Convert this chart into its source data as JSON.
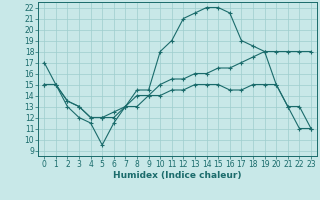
{
  "xlabel": "Humidex (Indice chaleur)",
  "bg_color": "#c8e8e8",
  "line_color": "#1a6b6b",
  "grid_color": "#9ecece",
  "xlim": [
    -0.5,
    23.5
  ],
  "ylim": [
    8.5,
    22.5
  ],
  "yticks": [
    9,
    10,
    11,
    12,
    13,
    14,
    15,
    16,
    17,
    18,
    19,
    20,
    21,
    22
  ],
  "xticks": [
    0,
    1,
    2,
    3,
    4,
    5,
    6,
    7,
    8,
    9,
    10,
    11,
    12,
    13,
    14,
    15,
    16,
    17,
    18,
    19,
    20,
    21,
    22,
    23
  ],
  "line1_x": [
    0,
    1,
    2,
    3,
    4,
    5,
    6,
    7,
    8,
    9,
    10,
    11,
    12,
    13,
    14,
    15,
    16,
    17,
    18,
    19,
    20,
    21,
    22,
    23
  ],
  "line1_y": [
    17,
    15,
    13,
    12,
    11.5,
    9.5,
    11.5,
    13,
    14.5,
    14.5,
    18,
    19,
    21,
    21.5,
    22,
    22,
    21.5,
    19,
    18.5,
    18,
    15,
    13,
    11,
    11
  ],
  "line2_x": [
    0,
    1,
    2,
    3,
    4,
    5,
    6,
    7,
    8,
    9,
    10,
    11,
    12,
    13,
    14,
    15,
    16,
    17,
    18,
    19,
    20,
    21,
    22,
    23
  ],
  "line2_y": [
    15,
    15,
    13.5,
    13,
    12,
    12,
    12,
    13,
    13,
    14,
    14,
    14.5,
    14.5,
    15,
    15,
    15,
    14.5,
    14.5,
    15,
    15,
    15,
    13,
    13,
    11
  ],
  "line3_x": [
    0,
    1,
    2,
    3,
    4,
    5,
    6,
    7,
    8,
    9,
    10,
    11,
    12,
    13,
    14,
    15,
    16,
    17,
    18,
    19,
    20,
    21,
    22,
    23
  ],
  "line3_y": [
    15,
    15,
    13.5,
    13,
    12,
    12,
    12.5,
    13,
    14,
    14,
    15,
    15.5,
    15.5,
    16,
    16,
    16.5,
    16.5,
    17,
    17.5,
    18,
    18,
    18,
    18,
    18
  ]
}
